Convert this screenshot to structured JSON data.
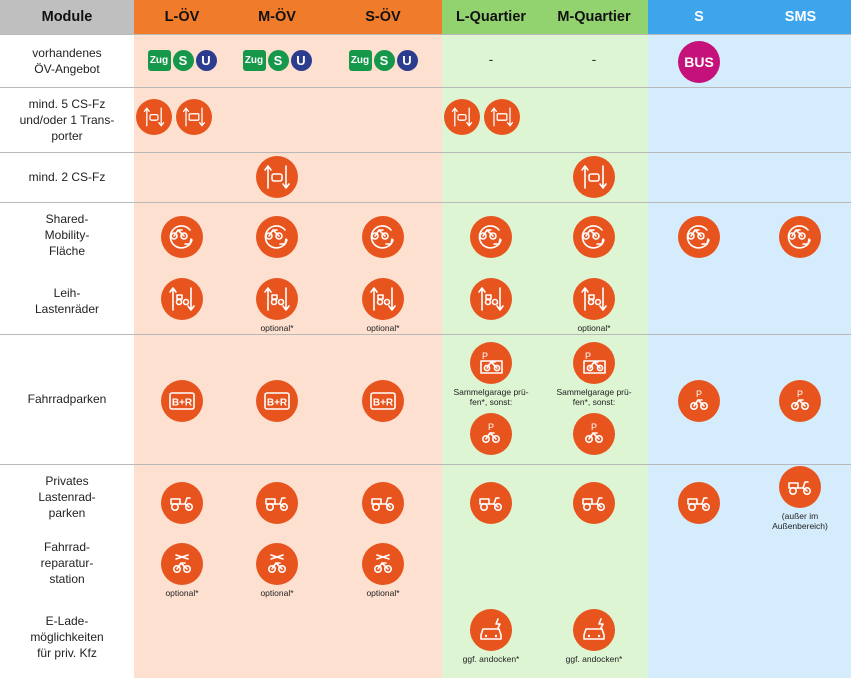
{
  "colors": {
    "module_header": "#bfbfbf",
    "module_col": "#ffffff",
    "oev_header": "#f07b2a",
    "oev_col": "#fde0d0",
    "quartier_header": "#93d36f",
    "quartier_col": "#ddf5d3",
    "s_header": "#3da5ec",
    "s_col": "#d4ecfb",
    "icon": "#e8541e",
    "bus": "#c4127a"
  },
  "headers": [
    "Module",
    "L-ÖV",
    "M-ÖV",
    "S-ÖV",
    "L-Quartier",
    "M-Quartier",
    "S",
    "SMS"
  ],
  "rows": [
    {
      "label": "vorhandenes\nÖV-Angebot"
    },
    {
      "label": "mind. 5 CS-Fz\nund/oder 1 Trans-\nporter"
    },
    {
      "label": "mind. 2 CS-Fz"
    },
    {
      "label": "Shared-\nMobility-\nFläche"
    },
    {
      "label": "Leih-\nLastenräder"
    },
    {
      "label": "Fahrradparken"
    },
    {
      "label": "Privates\nLastenrad-\nparken"
    },
    {
      "label": "Fahrrad-\nreparatur-\nstation"
    },
    {
      "label": "E-Lade-\nmöglichkeiten\nfür priv. Kfz"
    }
  ],
  "transit": {
    "zug": "Zug",
    "s": "S",
    "u": "U",
    "bus": "BUS",
    "none": "-"
  },
  "notes": {
    "optional": "optional*",
    "sammelgarage": "Sammelgarage prü-\nfen*, sonst:",
    "ausser": "(außer im\nAußenbereich)",
    "andocken": "ggf. andocken*"
  },
  "icons": {
    "carsharing": "carsharing-icon",
    "transporter": "transporter-icon",
    "shared_mobility": "shared-mobility-icon",
    "cargo_bike_rental": "cargo-bike-rental-icon",
    "bike_and_ride": "bike-and-ride-icon",
    "bike_garage": "bike-garage-icon",
    "bike_parking": "bike-parking-icon",
    "cargo_bike": "cargo-bike-icon",
    "repair": "bike-repair-icon",
    "ev_charging": "ev-charging-icon"
  },
  "br_text": "B+R",
  "parking_letter": "P"
}
